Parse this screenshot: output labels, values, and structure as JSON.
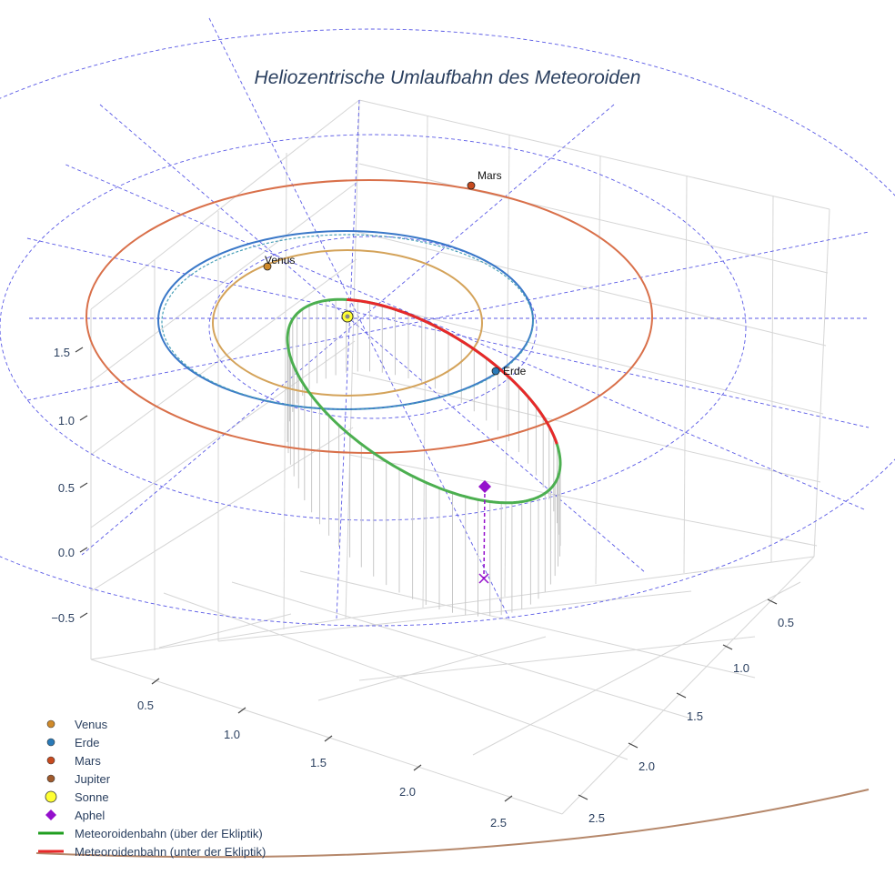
{
  "chart_data": {
    "type": "scatter3d",
    "title": "Heliozentrische Umlaufbahn des Meteoroiden",
    "axes": {
      "x_ticks": [
        "0.5",
        "1.0",
        "1.5",
        "2.0",
        "2.5"
      ],
      "y_ticks": [
        "0.5",
        "1.0",
        "1.5",
        "2.0",
        "2.5"
      ],
      "z_ticks": [
        "−0.5",
        "0.0",
        "0.5",
        "1.0",
        "1.5"
      ]
    },
    "planets": [
      {
        "name": "Venus",
        "orbit_radius_au": 0.72,
        "label": "Venus",
        "color": "#d4a35a",
        "marker": "#d08a2a"
      },
      {
        "name": "Erde",
        "orbit_radius_au": 1.0,
        "label": "Erde",
        "color": "#3a78c8",
        "marker": "#2a7ab8"
      },
      {
        "name": "Mars",
        "orbit_radius_au": 1.52,
        "label": "Mars",
        "color": "#d9704a",
        "marker": "#c84a1e"
      },
      {
        "name": "Jupiter",
        "orbit_radius_au": 5.2,
        "label": "",
        "color": "#b5876a",
        "marker": "#a05a2c"
      }
    ],
    "sun": {
      "name": "Sonne",
      "color": "#ffff33"
    },
    "aphel": {
      "name": "Aphel",
      "color": "#9410cc"
    },
    "meteoroid": {
      "above_name": "Meteoroidenbahn (über der Ekliptik)",
      "below_name": "Meteoroidenbahn (unter der Ekliptik)",
      "above_color": "#4caf50",
      "below_color": "#e8282a"
    },
    "grid": true,
    "legend_position": "bottom-left"
  },
  "legend": [
    {
      "label": "Venus",
      "kind": "dot",
      "color": "#d08a2a"
    },
    {
      "label": "Erde",
      "kind": "dot",
      "color": "#2a7ab8"
    },
    {
      "label": "Mars",
      "kind": "dot",
      "color": "#c84a1e"
    },
    {
      "label": "Jupiter",
      "kind": "dot",
      "color": "#a05a2c"
    },
    {
      "label": "Sonne",
      "kind": "bigdot",
      "color": "#ffff33"
    },
    {
      "label": "Aphel",
      "kind": "diamond",
      "color": "#9410cc"
    },
    {
      "label": "Meteoroidenbahn (über der Ekliptik)",
      "kind": "line",
      "color": "#1f9e1f"
    },
    {
      "label": "Meteoroidenbahn (unter der Ekliptik)",
      "kind": "line",
      "color": "#e8282a"
    }
  ]
}
